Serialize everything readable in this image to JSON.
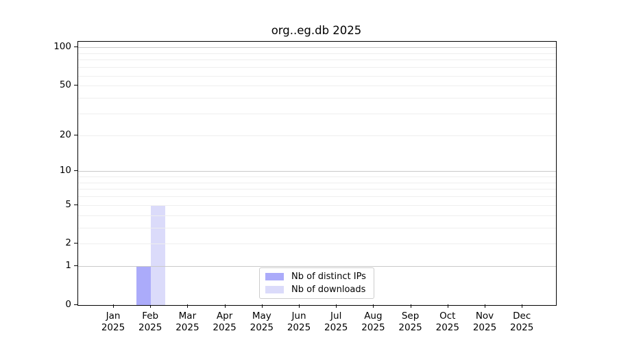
{
  "chart_data": {
    "type": "bar",
    "title": "org..eg.db 2025",
    "categories": [
      "Jan",
      "Feb",
      "Mar",
      "Apr",
      "May",
      "Jun",
      "Jul",
      "Aug",
      "Sep",
      "Oct",
      "Nov",
      "Dec"
    ],
    "x_year_label": "2025",
    "series": [
      {
        "name": "Nb of distinct IPs",
        "color": "#ababfa",
        "values": [
          0,
          1,
          0,
          0,
          0,
          0,
          0,
          0,
          0,
          0,
          0,
          0
        ]
      },
      {
        "name": "Nb of downloads",
        "color": "#dbdbfa",
        "values": [
          0,
          5,
          0,
          0,
          0,
          0,
          0,
          0,
          0,
          0,
          0,
          0
        ]
      }
    ],
    "yscale": "log1p",
    "ylim": [
      0,
      111
    ],
    "ytick_values": [
      0,
      1,
      2,
      5,
      10,
      20,
      50,
      100
    ],
    "ytick_labels": [
      "0",
      "1",
      "2",
      "5",
      "10",
      "20",
      "50",
      "100"
    ],
    "major_gridlines": [
      1,
      10,
      100
    ],
    "minor_gridlines": [
      2,
      3,
      4,
      5,
      6,
      7,
      8,
      9,
      20,
      30,
      40,
      50,
      60,
      70,
      80,
      90
    ],
    "grid": "horizontal",
    "legend_position": "lower center",
    "colors": {
      "spine": "#000000",
      "major_grid": "#c9c9c9",
      "minor_grid": "#eeeeee",
      "background": "#ffffff"
    }
  }
}
